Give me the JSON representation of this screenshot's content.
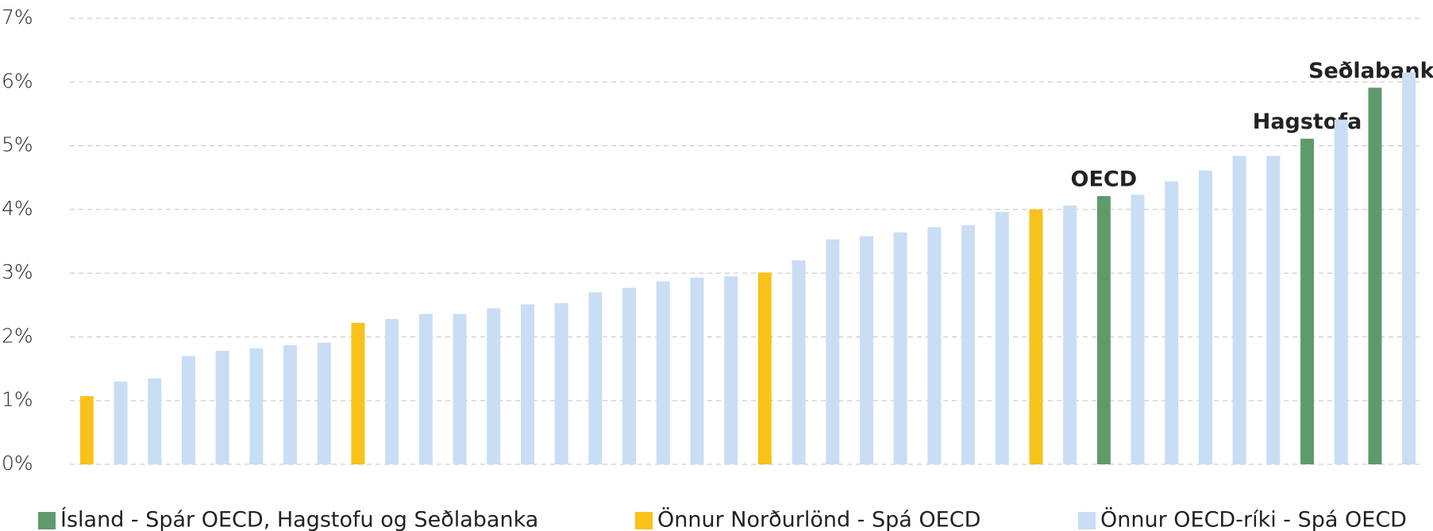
{
  "chart_data": {
    "type": "bar",
    "categories": [
      null,
      null,
      null,
      null,
      null,
      null,
      null,
      null,
      null,
      null,
      null,
      null,
      null,
      null,
      null,
      null,
      null,
      null,
      null,
      null,
      null,
      null,
      null,
      null,
      null,
      null,
      null,
      null,
      null,
      null,
      null,
      null,
      null,
      null,
      null,
      null,
      null,
      null,
      null,
      null
    ],
    "series": [
      {
        "name": "Ísland - Spár OECD, Hagstofu og Seðlabanka",
        "color": "#5e9a6c",
        "values": [
          null,
          null,
          null,
          null,
          null,
          null,
          null,
          null,
          null,
          null,
          null,
          null,
          null,
          null,
          null,
          null,
          null,
          null,
          null,
          null,
          null,
          null,
          null,
          null,
          null,
          null,
          null,
          null,
          null,
          null,
          4.21,
          null,
          null,
          null,
          null,
          null,
          5.11,
          null,
          5.91,
          null
        ],
        "labels": [
          null,
          null,
          null,
          null,
          null,
          null,
          null,
          null,
          null,
          null,
          null,
          null,
          null,
          null,
          null,
          null,
          null,
          null,
          null,
          null,
          null,
          null,
          null,
          null,
          null,
          null,
          null,
          null,
          null,
          null,
          "OECD",
          null,
          null,
          null,
          null,
          null,
          "Hagstofa",
          null,
          "Seðlabanki",
          null
        ]
      },
      {
        "name": "Önnur Norðurlönd - Spá OECD",
        "color": "#f9c21b",
        "values": [
          1.07,
          null,
          null,
          null,
          null,
          null,
          null,
          null,
          2.22,
          null,
          null,
          null,
          null,
          null,
          null,
          null,
          null,
          null,
          null,
          null,
          3.01,
          null,
          null,
          null,
          null,
          null,
          null,
          null,
          4.0,
          null,
          null,
          null,
          null,
          null,
          null,
          null,
          null,
          null,
          null,
          null
        ]
      },
      {
        "name": "Önnur OECD-ríki - Spá OECD",
        "color": "#c9ddf4",
        "values": [
          null,
          1.3,
          1.35,
          1.7,
          1.78,
          1.82,
          1.87,
          1.91,
          null,
          2.28,
          2.36,
          2.36,
          2.45,
          2.51,
          2.53,
          2.7,
          2.77,
          2.87,
          2.93,
          2.95,
          null,
          3.2,
          3.53,
          3.58,
          3.64,
          3.72,
          3.75,
          3.96,
          null,
          4.06,
          null,
          4.23,
          4.44,
          4.61,
          4.84,
          4.84,
          null,
          5.41,
          null,
          6.15
        ]
      }
    ],
    "ylim": [
      0,
      7
    ],
    "yticks": [
      {
        "value": 0,
        "label": "0%"
      },
      {
        "value": 1,
        "label": "1%"
      },
      {
        "value": 2,
        "label": "2%"
      },
      {
        "value": 3,
        "label": "3%"
      },
      {
        "value": 4,
        "label": "4%"
      },
      {
        "value": 5,
        "label": "5%"
      },
      {
        "value": 6,
        "label": "6%"
      },
      {
        "value": 7,
        "label": "7%"
      }
    ],
    "grid": true
  }
}
